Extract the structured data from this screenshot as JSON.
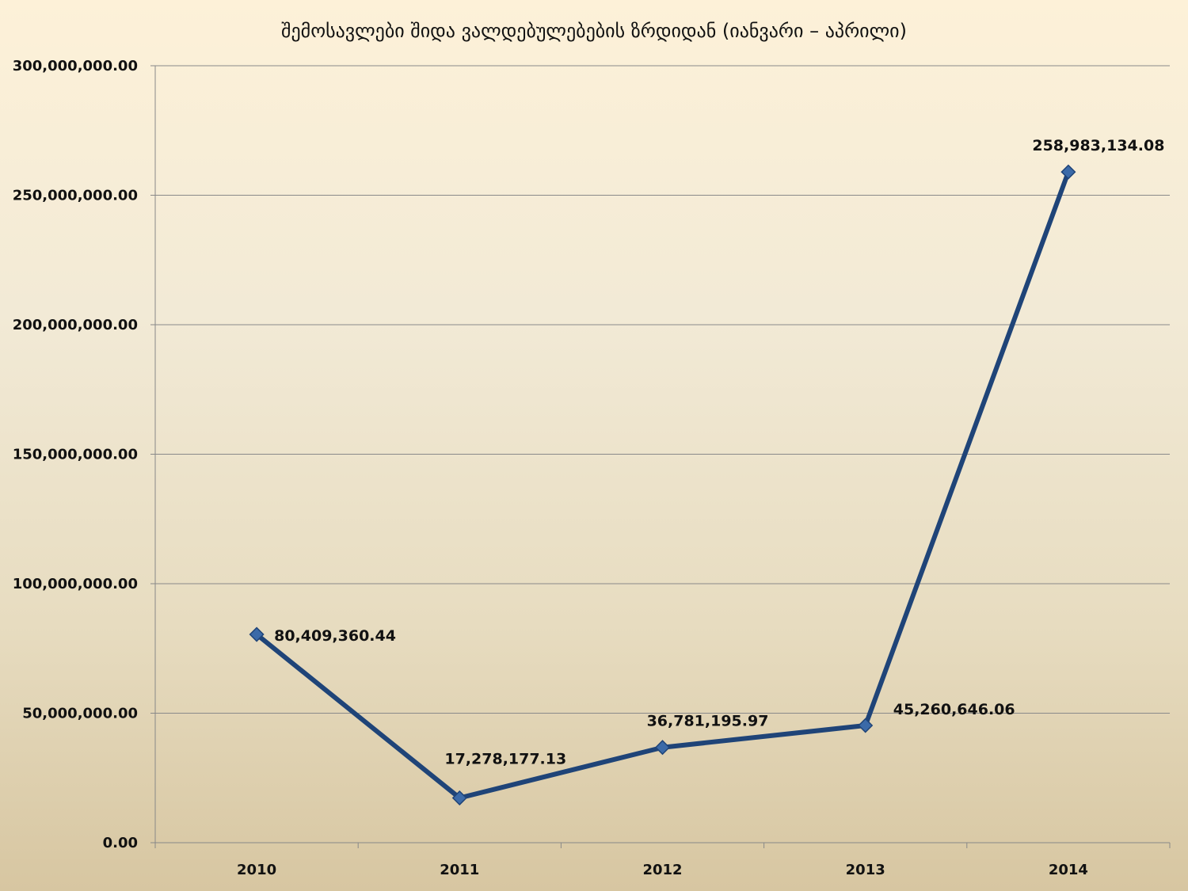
{
  "chart_data": {
    "type": "line",
    "title": "შემოსავლები შიდა ვალდებულებების ზრდიდან (იანვარი – აპრილი)",
    "xlabel": "",
    "ylabel": "",
    "categories": [
      "2010",
      "2011",
      "2012",
      "2013",
      "2014"
    ],
    "series": [
      {
        "values": [
          80409360.44,
          17278177.13,
          36781195.97,
          45260646.06,
          258983134.08
        ],
        "labels": [
          "80,409,360.44",
          "17,278,177.13",
          "36,781,195.97",
          "45,260,646.06",
          "258,983,134.08"
        ],
        "color": "#1f4478"
      }
    ],
    "ylim": [
      0,
      300000000
    ],
    "yticks": [
      0,
      50000000,
      100000000,
      150000000,
      200000000,
      250000000,
      300000000
    ],
    "ytick_labels": [
      "0.00",
      "50,000,000.00",
      "100,000,000.00",
      "150,000,000.00",
      "200,000,000.00",
      "250,000,000.00",
      "300,000,000.00"
    ],
    "grid": true,
    "legend": "none",
    "colors": {
      "line": "#1f4478",
      "marker_fill": "#3b6aa8",
      "gridline": "#8a8a8a",
      "axis": "#888888"
    }
  }
}
